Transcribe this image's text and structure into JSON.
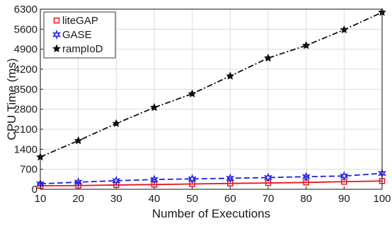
{
  "chart_data": {
    "type": "line",
    "xlabel": "Number of Executions",
    "ylabel": "CPU Time (ms)",
    "x": [
      10,
      20,
      30,
      40,
      50,
      60,
      70,
      80,
      90,
      100
    ],
    "xlim": [
      10,
      100
    ],
    "ylim": [
      0,
      6300
    ],
    "xticks": [
      "10",
      "20",
      "30",
      "40",
      "50",
      "60",
      "70",
      "80",
      "90",
      "100"
    ],
    "yticks": [
      "0",
      "700",
      "1400",
      "2100",
      "2800",
      "3500",
      "4200",
      "4900",
      "5600",
      "6300"
    ],
    "grid": true,
    "legend_position": "top-left",
    "series": [
      {
        "name": "liteGAP",
        "color": "#e8141c",
        "marker": "square",
        "line_style": "solid",
        "values": [
          120,
          130,
          150,
          165,
          185,
          205,
          220,
          240,
          265,
          290
        ]
      },
      {
        "name": "GASE",
        "color": "#1f1fe6",
        "marker": "star",
        "line_style": "dashed",
        "values": [
          190,
          250,
          300,
          340,
          365,
          385,
          410,
          440,
          465,
          555
        ]
      },
      {
        "name": "rampIoD",
        "color": "#111111",
        "marker": "star",
        "line_style": "dashdot",
        "values": [
          1130,
          1700,
          2300,
          2860,
          3340,
          3960,
          4590,
          5030,
          5580,
          6190
        ]
      }
    ]
  }
}
